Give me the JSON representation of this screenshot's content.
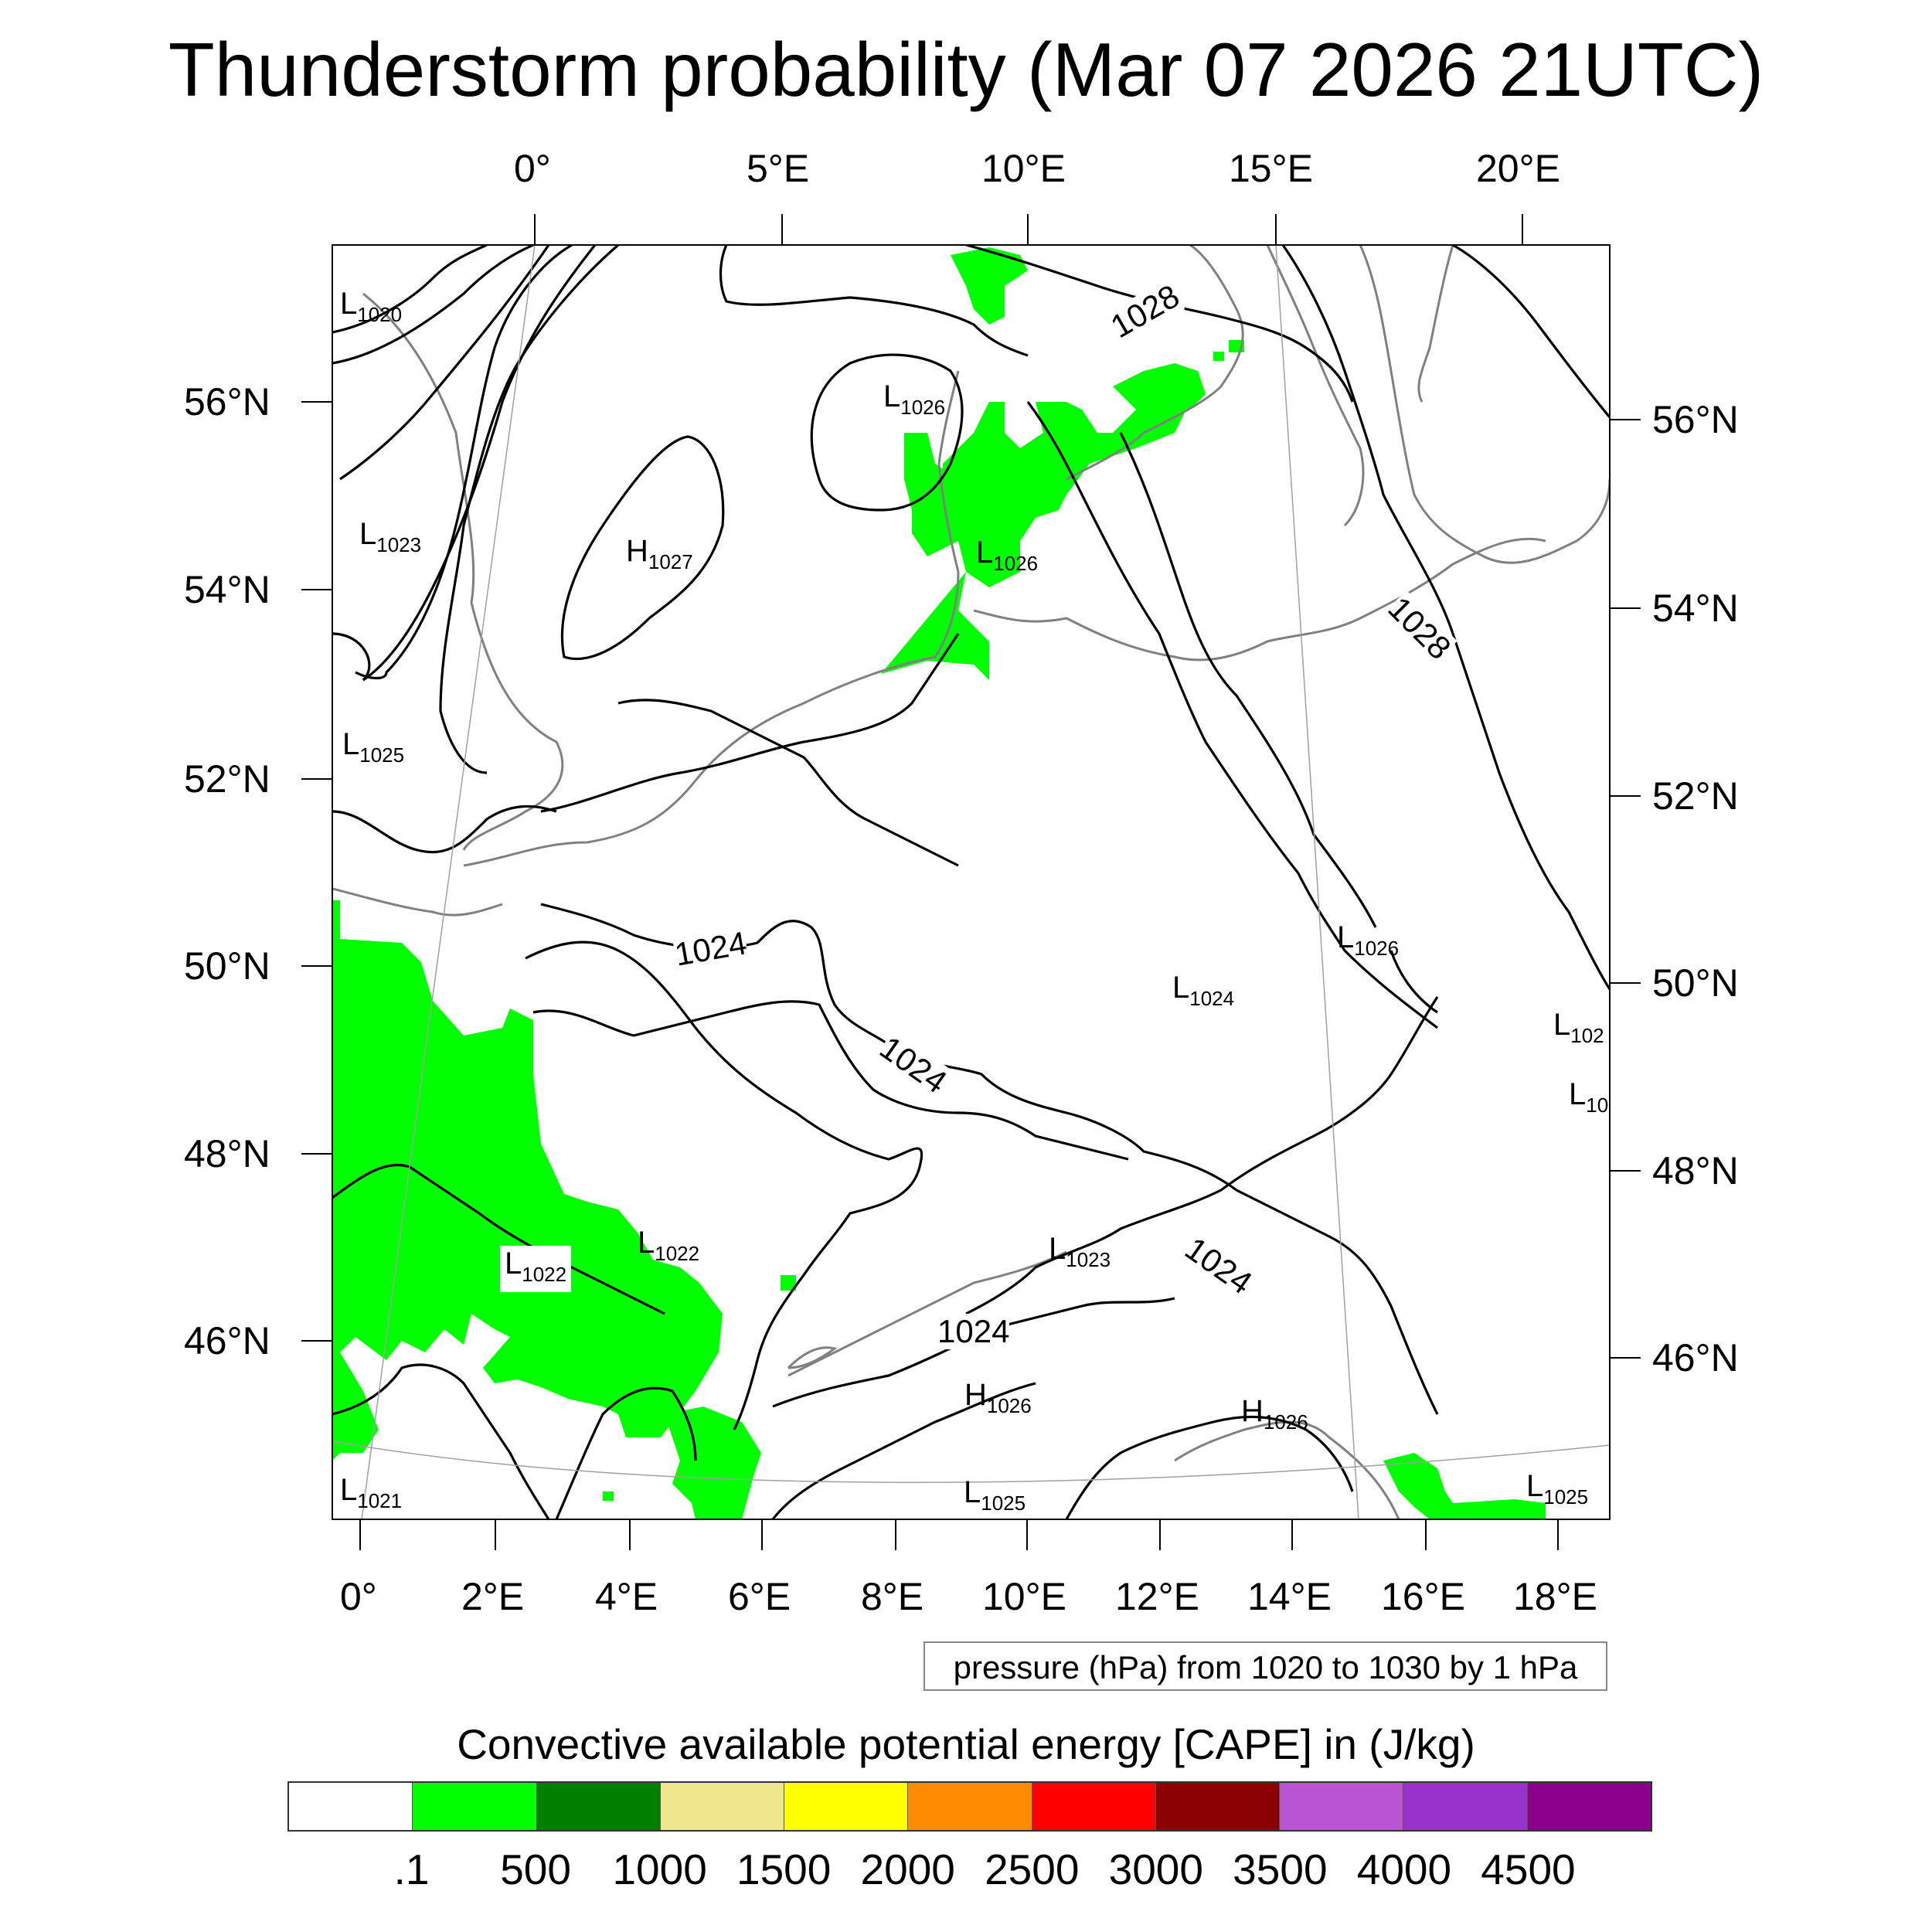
{
  "title": "Thunderstorm probability (Mar 07 2026 21UTC)",
  "axes": {
    "top_lon_labels": [
      "0°",
      "5°E",
      "10°E",
      "15°E",
      "20°E"
    ],
    "bottom_lon_labels": [
      "0°",
      "2°E",
      "4°E",
      "6°E",
      "8°E",
      "10°E",
      "12°E",
      "14°E",
      "16°E",
      "18°E"
    ],
    "left_lat_labels": [
      "56°N",
      "54°N",
      "52°N",
      "50°N",
      "48°N",
      "46°N"
    ],
    "right_lat_labels": [
      "56°N",
      "54°N",
      "52°N",
      "50°N",
      "48°N",
      "46°N"
    ]
  },
  "pressure_centers": [
    {
      "letter": "L",
      "value": "1020"
    },
    {
      "letter": "L",
      "value": "1023"
    },
    {
      "letter": "L",
      "value": "1025"
    },
    {
      "letter": "H",
      "value": "1027"
    },
    {
      "letter": "L",
      "value": "1026"
    },
    {
      "letter": "L",
      "value": "1026"
    },
    {
      "letter": "L",
      "value": "1026"
    },
    {
      "letter": "L",
      "value": "1024"
    },
    {
      "letter": "L",
      "value": "102"
    },
    {
      "letter": "L",
      "value": "10"
    },
    {
      "letter": "L",
      "value": "1022"
    },
    {
      "letter": "L",
      "value": "1022"
    },
    {
      "letter": "L",
      "value": "1023"
    },
    {
      "letter": "H",
      "value": "1026"
    },
    {
      "letter": "H",
      "value": "1026"
    },
    {
      "letter": "L",
      "value": "1021"
    },
    {
      "letter": "L",
      "value": "1025"
    },
    {
      "letter": "L",
      "value": "1025"
    }
  ],
  "isobar_labels": [
    "1028",
    "1028",
    "1024",
    "1024",
    "1024",
    "1024"
  ],
  "pressure_legend": "pressure (hPa) from 1020 to 1030 by 1 hPa",
  "colorbar": {
    "title": "Convective available potential energy [CAPE] in (J/kg)",
    "colors": [
      "#ffffff",
      "#00ff00",
      "#008000",
      "#f0e68c",
      "#ffff00",
      "#ff8c00",
      "#ff0000",
      "#8b0000",
      "#ba55d3",
      "#9932cc",
      "#8b008b"
    ],
    "labels": [
      ".1",
      "500",
      "1000",
      "1500",
      "2000",
      "2500",
      "3000",
      "3500",
      "4000",
      "4500"
    ]
  },
  "colors": {
    "cape_low": "#00ff00",
    "coastline": "#808080",
    "isobar": "#000000"
  }
}
